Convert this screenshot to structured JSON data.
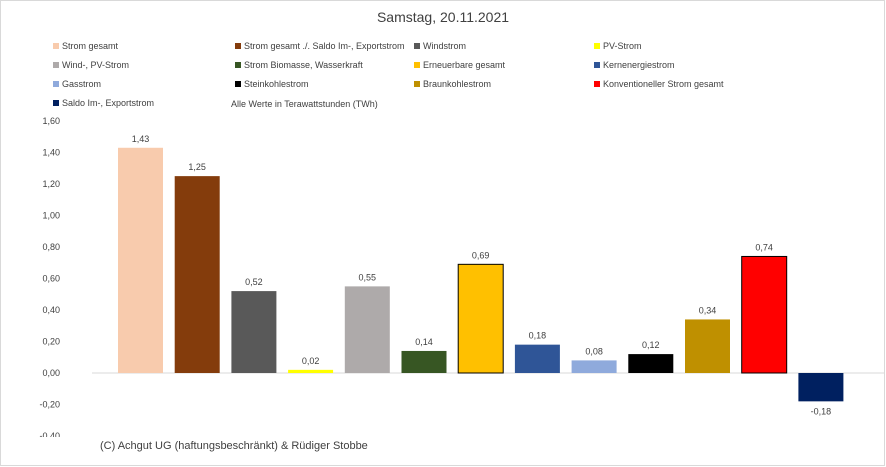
{
  "chart_data": {
    "type": "bar",
    "title": "Samstag, 20.11.2021",
    "subtitle": "Alle Werte in Terawattstunden (TWh)",
    "xlabel": "",
    "ylabel": "",
    "ylim": [
      -0.4,
      1.6
    ],
    "y_ticks": [
      "1,60",
      "1,40",
      "1,20",
      "1,00",
      "0,80",
      "0,60",
      "0,40",
      "0,20",
      "0,00",
      "-0,20",
      "-0,40"
    ],
    "grid": false,
    "legend_position": "top",
    "categories": [
      "Strom gesamt",
      "Strom gesamt ./. Saldo Im-, Exportstrom",
      "Windstrom",
      "PV-Strom",
      "Wind-, PV-Strom",
      "Strom Biomasse, Wasserkraft",
      "Erneuerbare gesamt",
      "Kernenergiestrom",
      "Gasstrom",
      "Steinkohlestrom",
      "Braunkohlestrom",
      "Konventioneller Strom gesamt",
      "Saldo Im-, Exportstrom"
    ],
    "values": [
      1.43,
      1.25,
      0.52,
      0.02,
      0.55,
      0.14,
      0.69,
      0.18,
      0.08,
      0.12,
      0.34,
      0.74,
      -0.18
    ],
    "value_labels": [
      "1,43",
      "1,25",
      "0,52",
      "0,02",
      "0,55",
      "0,14",
      "0,69",
      "0,18",
      "0,08",
      "0,12",
      "0,34",
      "0,74",
      "-0,18"
    ],
    "colors": [
      "#f8cbad",
      "#843c0c",
      "#595959",
      "#ffff00",
      "#aeaaaa",
      "#375623",
      "#ffc000",
      "#2f5597",
      "#8faadc",
      "#000000",
      "#bf9000",
      "#ff0000",
      "#002060"
    ],
    "outlined": [
      false,
      false,
      false,
      false,
      false,
      false,
      true,
      false,
      false,
      false,
      false,
      true,
      false
    ]
  },
  "footer": {
    "copyright": "(C) Achgut UG (haftungsbeschränkt) & Rüdiger Stobbe"
  }
}
